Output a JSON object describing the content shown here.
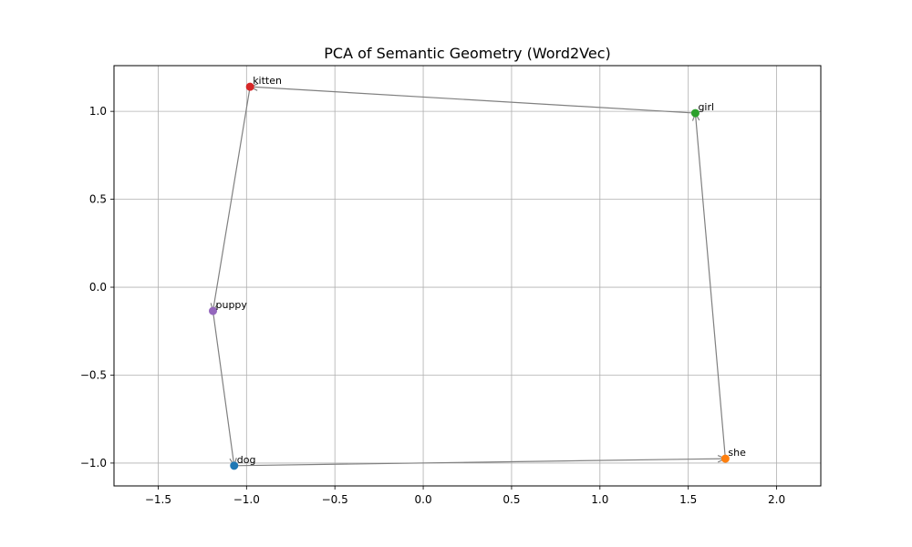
{
  "chart_data": {
    "type": "scatter",
    "title": "PCA of Semantic Geometry (Word2Vec)",
    "xlabel": "",
    "ylabel": "",
    "xlim": [
      -1.75,
      2.25
    ],
    "ylim": [
      -1.13,
      1.26
    ],
    "xticks": [
      -1.5,
      -1.0,
      -0.5,
      0.0,
      0.5,
      1.0,
      1.5,
      2.0
    ],
    "xtick_labels": [
      "−1.5",
      "−1.0",
      "−0.5",
      "0.0",
      "0.5",
      "1.0",
      "1.5",
      "2.0"
    ],
    "yticks": [
      -1.0,
      -0.5,
      0.0,
      0.5,
      1.0
    ],
    "ytick_labels": [
      "−1.0",
      "−0.5",
      "0.0",
      "0.5",
      "1.0"
    ],
    "grid": true,
    "points": [
      {
        "label": "dog",
        "x": -1.07,
        "y": -1.015,
        "color": "#1f77b4"
      },
      {
        "label": "she",
        "x": 1.71,
        "y": -0.975,
        "color": "#ff7f0e"
      },
      {
        "label": "girl",
        "x": 1.54,
        "y": 0.99,
        "color": "#2ca02c"
      },
      {
        "label": "kitten",
        "x": -0.98,
        "y": 1.14,
        "color": "#d62728"
      },
      {
        "label": "puppy",
        "x": -1.19,
        "y": -0.135,
        "color": "#9467bd"
      }
    ],
    "arrows": [
      {
        "from": "dog",
        "to": "she"
      },
      {
        "from": "she",
        "to": "girl"
      },
      {
        "from": "girl",
        "to": "kitten"
      },
      {
        "from": "kitten",
        "to": "puppy"
      },
      {
        "from": "puppy",
        "to": "dog"
      }
    ],
    "arrow_color": "#808080"
  }
}
